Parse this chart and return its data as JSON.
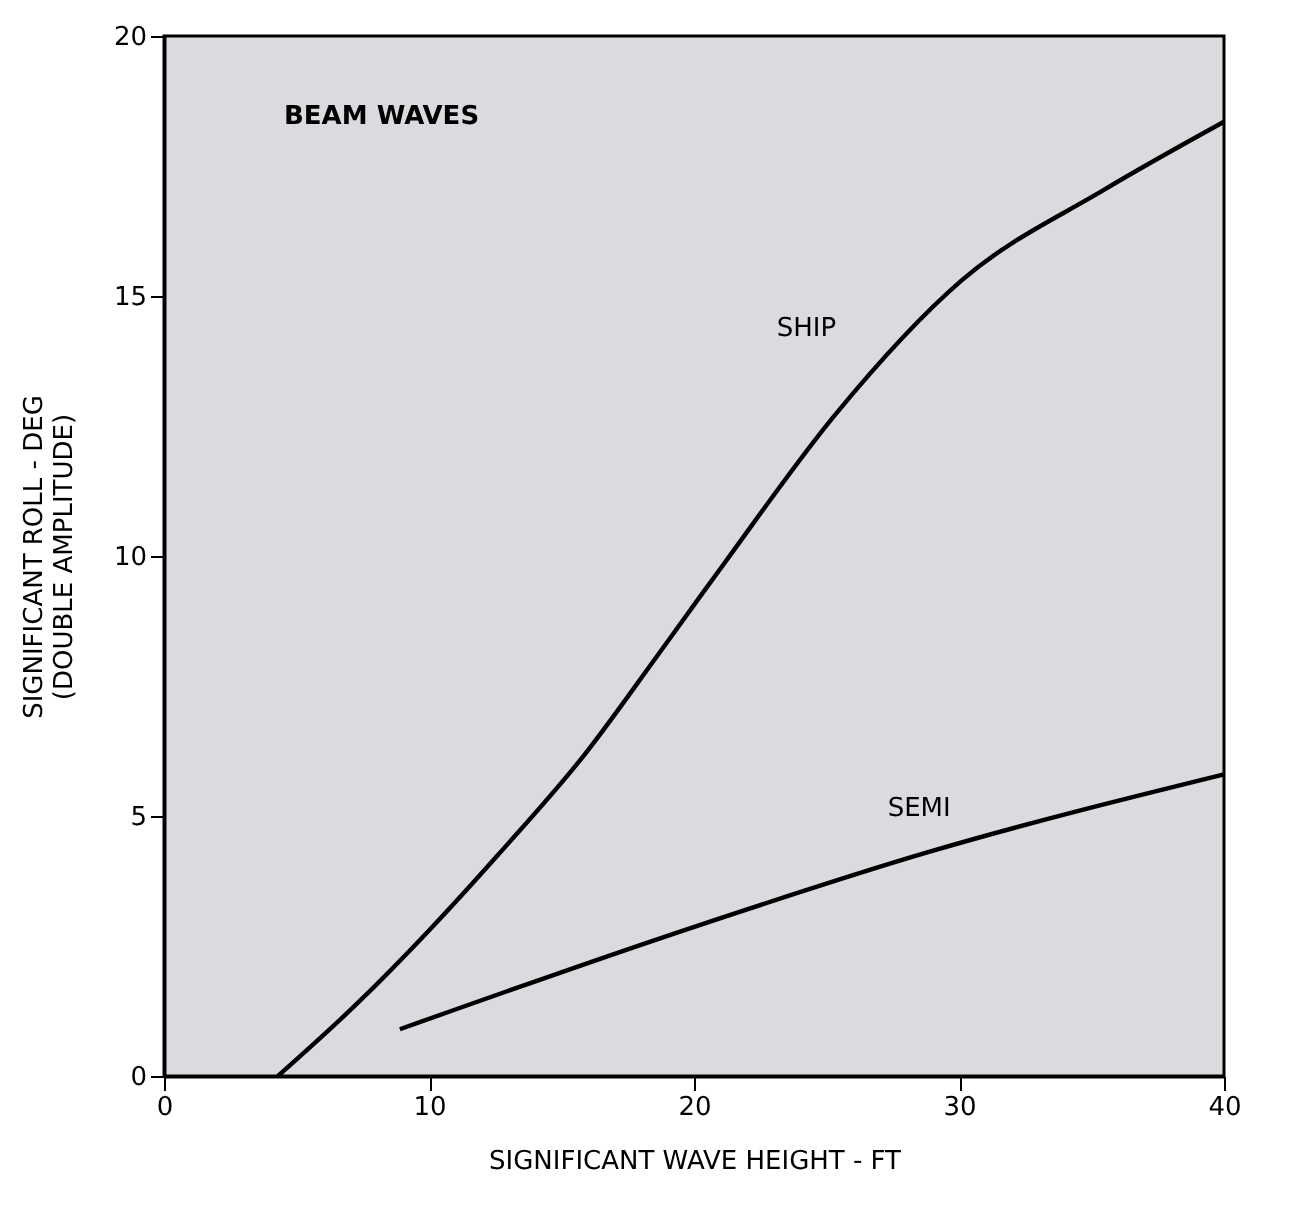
{
  "chart_data": {
    "type": "line",
    "title": "BEAM WAVES",
    "xlabel": "SIGNIFICANT WAVE HEIGHT - FT",
    "ylabel": [
      "SIGNIFICANT ROLL - DEG",
      "(DOUBLE AMPLITUDE)"
    ],
    "series": [
      {
        "name": "SHIP",
        "color": "#000000",
        "x": [
          4.3,
          7.3,
          10.0,
          12.6,
          15.9,
          18.5,
          20.2,
          21.2,
          25.3,
          30.1,
          35.5,
          40
        ],
        "values": [
          0,
          1.4,
          2.8,
          4.25,
          6.2,
          8.0,
          9.2,
          9.9,
          12.7,
          15.3,
          17.05,
          18.35
        ]
      },
      {
        "name": "SEMI",
        "color": "#000000",
        "x": [
          8.9,
          19.9,
          28.8,
          40
        ],
        "values": [
          0.9,
          2.85,
          4.3,
          5.8
        ]
      }
    ],
    "xlim": [
      0,
      40
    ],
    "xticks": [
      0,
      10,
      20,
      30,
      40
    ],
    "ylim": [
      0,
      20
    ],
    "yticks": [
      0,
      5,
      10,
      15,
      20
    ],
    "grid": false,
    "marker": "none",
    "line_style": "solid"
  }
}
